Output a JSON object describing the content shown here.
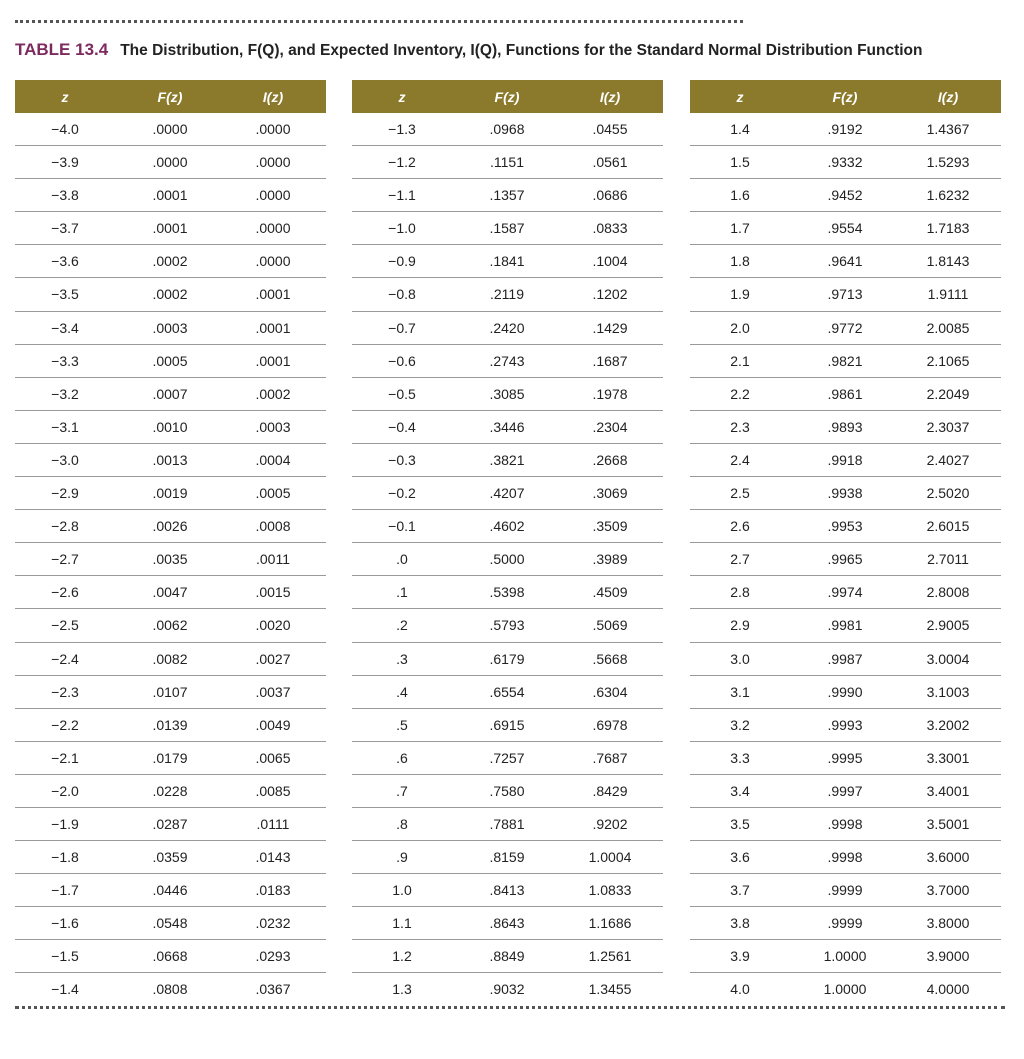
{
  "title": {
    "label": "TABLE 13.4",
    "text": "The Distribution, F(Q), and Expected Inventory, I(Q), Functions for the Standard Normal Distribution Function"
  },
  "tables": [
    {
      "headers": [
        "z",
        "F(z)",
        "I(z)"
      ],
      "rows": [
        [
          "−4.0",
          ".0000",
          ".0000"
        ],
        [
          "−3.9",
          ".0000",
          ".0000"
        ],
        [
          "−3.8",
          ".0001",
          ".0000"
        ],
        [
          "−3.7",
          ".0001",
          ".0000"
        ],
        [
          "−3.6",
          ".0002",
          ".0000"
        ],
        [
          "−3.5",
          ".0002",
          ".0001"
        ],
        [
          "−3.4",
          ".0003",
          ".0001"
        ],
        [
          "−3.3",
          ".0005",
          ".0001"
        ],
        [
          "−3.2",
          ".0007",
          ".0002"
        ],
        [
          "−3.1",
          ".0010",
          ".0003"
        ],
        [
          "−3.0",
          ".0013",
          ".0004"
        ],
        [
          "−2.9",
          ".0019",
          ".0005"
        ],
        [
          "−2.8",
          ".0026",
          ".0008"
        ],
        [
          "−2.7",
          ".0035",
          ".0011"
        ],
        [
          "−2.6",
          ".0047",
          ".0015"
        ],
        [
          "−2.5",
          ".0062",
          ".0020"
        ],
        [
          "−2.4",
          ".0082",
          ".0027"
        ],
        [
          "−2.3",
          ".0107",
          ".0037"
        ],
        [
          "−2.2",
          ".0139",
          ".0049"
        ],
        [
          "−2.1",
          ".0179",
          ".0065"
        ],
        [
          "−2.0",
          ".0228",
          ".0085"
        ],
        [
          "−1.9",
          ".0287",
          ".0111"
        ],
        [
          "−1.8",
          ".0359",
          ".0143"
        ],
        [
          "−1.7",
          ".0446",
          ".0183"
        ],
        [
          "−1.6",
          ".0548",
          ".0232"
        ],
        [
          "−1.5",
          ".0668",
          ".0293"
        ],
        [
          "−1.4",
          ".0808",
          ".0367"
        ]
      ]
    },
    {
      "headers": [
        "z",
        "F(z)",
        "I(z)"
      ],
      "rows": [
        [
          "−1.3",
          ".0968",
          ".0455"
        ],
        [
          "−1.2",
          ".1151",
          ".0561"
        ],
        [
          "−1.1",
          ".1357",
          ".0686"
        ],
        [
          "−1.0",
          ".1587",
          ".0833"
        ],
        [
          "−0.9",
          ".1841",
          ".1004"
        ],
        [
          "−0.8",
          ".2119",
          ".1202"
        ],
        [
          "−0.7",
          ".2420",
          ".1429"
        ],
        [
          "−0.6",
          ".2743",
          ".1687"
        ],
        [
          "−0.5",
          ".3085",
          ".1978"
        ],
        [
          "−0.4",
          ".3446",
          ".2304"
        ],
        [
          "−0.3",
          ".3821",
          ".2668"
        ],
        [
          "−0.2",
          ".4207",
          ".3069"
        ],
        [
          "−0.1",
          ".4602",
          ".3509"
        ],
        [
          ".0",
          ".5000",
          ".3989"
        ],
        [
          ".1",
          ".5398",
          ".4509"
        ],
        [
          ".2",
          ".5793",
          ".5069"
        ],
        [
          ".3",
          ".6179",
          ".5668"
        ],
        [
          ".4",
          ".6554",
          ".6304"
        ],
        [
          ".5",
          ".6915",
          ".6978"
        ],
        [
          ".6",
          ".7257",
          ".7687"
        ],
        [
          ".7",
          ".7580",
          ".8429"
        ],
        [
          ".8",
          ".7881",
          ".9202"
        ],
        [
          ".9",
          ".8159",
          "1.0004"
        ],
        [
          "1.0",
          ".8413",
          "1.0833"
        ],
        [
          "1.1",
          ".8643",
          "1.1686"
        ],
        [
          "1.2",
          ".8849",
          "1.2561"
        ],
        [
          "1.3",
          ".9032",
          "1.3455"
        ]
      ]
    },
    {
      "headers": [
        "z",
        "F(z)",
        "I(z)"
      ],
      "rows": [
        [
          "1.4",
          ".9192",
          "1.4367"
        ],
        [
          "1.5",
          ".9332",
          "1.5293"
        ],
        [
          "1.6",
          ".9452",
          "1.6232"
        ],
        [
          "1.7",
          ".9554",
          "1.7183"
        ],
        [
          "1.8",
          ".9641",
          "1.8143"
        ],
        [
          "1.9",
          ".9713",
          "1.9111"
        ],
        [
          "2.0",
          ".9772",
          "2.0085"
        ],
        [
          "2.1",
          ".9821",
          "2.1065"
        ],
        [
          "2.2",
          ".9861",
          "2.2049"
        ],
        [
          "2.3",
          ".9893",
          "2.3037"
        ],
        [
          "2.4",
          ".9918",
          "2.4027"
        ],
        [
          "2.5",
          ".9938",
          "2.5020"
        ],
        [
          "2.6",
          ".9953",
          "2.6015"
        ],
        [
          "2.7",
          ".9965",
          "2.7011"
        ],
        [
          "2.8",
          ".9974",
          "2.8008"
        ],
        [
          "2.9",
          ".9981",
          "2.9005"
        ],
        [
          "3.0",
          ".9987",
          "3.0004"
        ],
        [
          "3.1",
          ".9990",
          "3.1003"
        ],
        [
          "3.2",
          ".9993",
          "3.2002"
        ],
        [
          "3.3",
          ".9995",
          "3.3001"
        ],
        [
          "3.4",
          ".9997",
          "3.4001"
        ],
        [
          "3.5",
          ".9998",
          "3.5001"
        ],
        [
          "3.6",
          ".9998",
          "3.6000"
        ],
        [
          "3.7",
          ".9999",
          "3.7000"
        ],
        [
          "3.8",
          ".9999",
          "3.8000"
        ],
        [
          "3.9",
          "1.0000",
          "3.9000"
        ],
        [
          "4.0",
          "1.0000",
          "4.0000"
        ]
      ]
    }
  ]
}
